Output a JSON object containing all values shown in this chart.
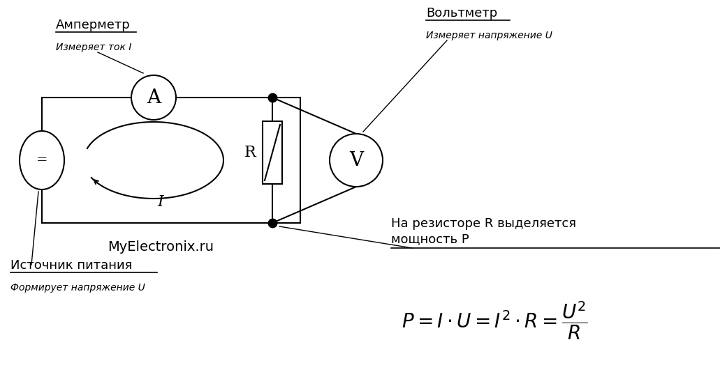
{
  "bg_color": "#ffffff",
  "line_color": "#000000",
  "labels": {
    "ammeter_label": "A",
    "source_label": "=",
    "voltmeter_label": "V",
    "resistor_label": "R",
    "current_label": "I",
    "watermark": "MyElectronix.ru",
    "ammeter_title": "Амперметр",
    "ammeter_subtitle": "Измеряет ток I",
    "source_title": "Источник питания",
    "source_subtitle": "Формирует напряжение U",
    "voltmeter_title": "Вольтметр",
    "voltmeter_subtitle": "Измеряет напряжение U",
    "power_title": "На резисторе R выделяется",
    "power_title2": "мощность P"
  }
}
